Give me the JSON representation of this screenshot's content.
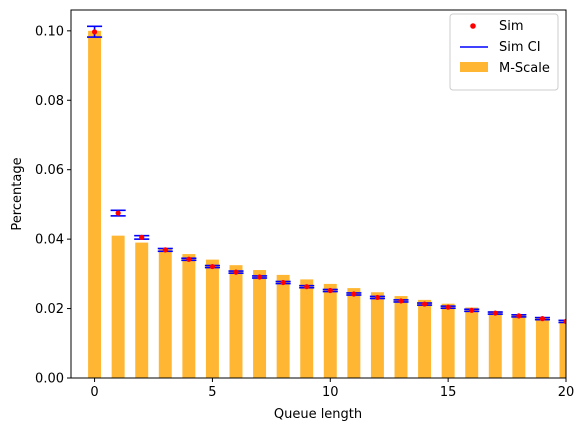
{
  "chart_data": {
    "type": "bar",
    "title": "",
    "xlabel": "Queue length",
    "ylabel": "Percentage",
    "xlim": [
      -1,
      20
    ],
    "ylim": [
      0,
      0.106
    ],
    "xticks": [
      0,
      5,
      10,
      15,
      20
    ],
    "yticks": [
      0.0,
      0.02,
      0.04,
      0.06,
      0.08,
      0.1
    ],
    "xtick_labels": [
      "0",
      "5",
      "10",
      "15",
      "20"
    ],
    "ytick_labels": [
      "0.00",
      "0.02",
      "0.04",
      "0.06",
      "0.08",
      "0.10"
    ],
    "legend": {
      "placement": "top-right",
      "entries": [
        {
          "label": "Sim",
          "kind": "point",
          "color": "#ff0000"
        },
        {
          "label": "Sim CI",
          "kind": "line",
          "color": "#0000ff"
        },
        {
          "label": "M-Scale",
          "kind": "bar",
          "color": "#ffa500"
        }
      ]
    },
    "series": [
      {
        "name": "M-Scale",
        "kind": "bar",
        "color": "#ffa500",
        "x": [
          0,
          1,
          2,
          3,
          4,
          5,
          6,
          7,
          8,
          9,
          10,
          11,
          12,
          13,
          14,
          15,
          16,
          17,
          18,
          19,
          20
        ],
        "values": [
          0.1,
          0.041,
          0.039,
          0.0373,
          0.0357,
          0.0341,
          0.0325,
          0.0311,
          0.0297,
          0.0284,
          0.0271,
          0.0259,
          0.0247,
          0.0236,
          0.0225,
          0.0214,
          0.0203,
          0.0193,
          0.0183,
          0.0173,
          0.0163
        ]
      },
      {
        "name": "Sim",
        "kind": "point",
        "color": "#ff0000",
        "x": [
          0,
          1,
          2,
          3,
          4,
          5,
          6,
          7,
          8,
          9,
          10,
          11,
          12,
          13,
          14,
          15,
          16,
          17,
          18,
          19,
          20
        ],
        "values": [
          0.0997,
          0.0475,
          0.0405,
          0.0369,
          0.0342,
          0.0321,
          0.0305,
          0.0291,
          0.0275,
          0.0263,
          0.0252,
          0.0242,
          0.0232,
          0.0222,
          0.0213,
          0.0204,
          0.0195,
          0.0187,
          0.0179,
          0.0171,
          0.0163
        ]
      },
      {
        "name": "Sim CI",
        "kind": "errorbar",
        "color": "#0000ff",
        "x": [
          0,
          1,
          2,
          3,
          4,
          5,
          6,
          7,
          8,
          9,
          10,
          11,
          12,
          13,
          14,
          15,
          16,
          17,
          18,
          19,
          20
        ],
        "lower": [
          0.0982,
          0.0467,
          0.04,
          0.0365,
          0.0339,
          0.0318,
          0.0302,
          0.0288,
          0.0272,
          0.026,
          0.0249,
          0.0239,
          0.0229,
          0.0219,
          0.021,
          0.0201,
          0.0192,
          0.0184,
          0.0176,
          0.0168,
          0.016
        ],
        "upper": [
          0.1013,
          0.0483,
          0.041,
          0.0373,
          0.0345,
          0.0324,
          0.0308,
          0.0294,
          0.0278,
          0.0266,
          0.0255,
          0.0245,
          0.0235,
          0.0225,
          0.0216,
          0.0207,
          0.0198,
          0.019,
          0.0182,
          0.0174,
          0.0166
        ]
      }
    ]
  }
}
